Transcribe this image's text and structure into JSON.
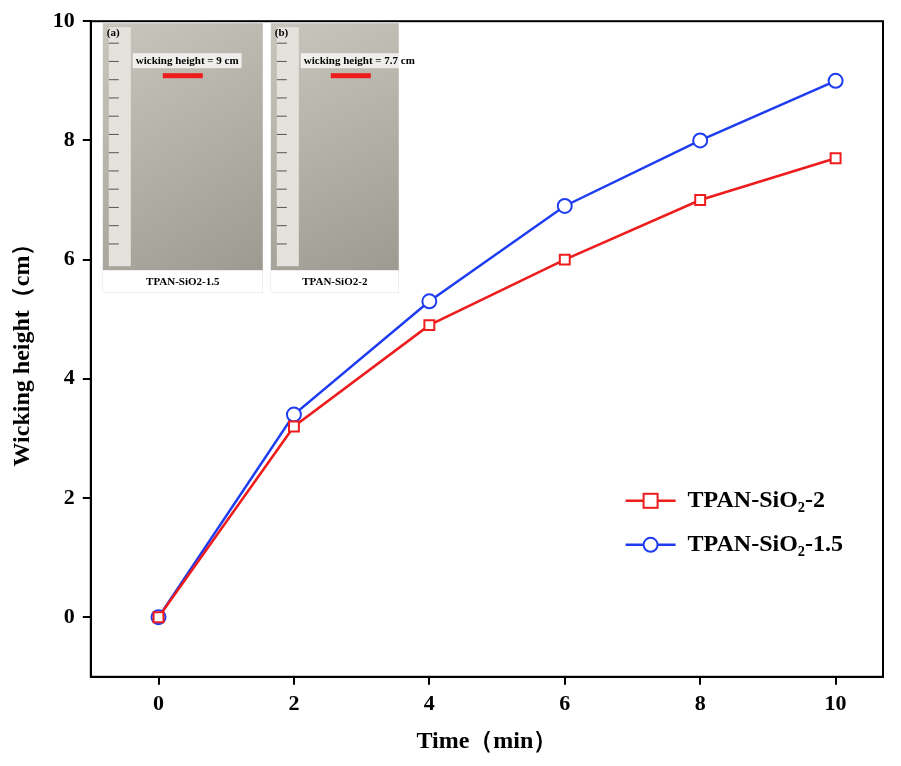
{
  "chart_data": {
    "type": "line",
    "x_label": "Time（min）",
    "y_label": "Wicking height（cm）",
    "x": [
      0,
      2,
      4,
      6,
      8,
      10
    ],
    "series": [
      {
        "name": "TPAN-SiO₂-2",
        "color": "#ee1c1c",
        "marker": "square",
        "values": [
          0,
          3.2,
          4.9,
          6.0,
          7.0,
          7.7
        ]
      },
      {
        "name": "TPAN-SiO₂-1.5",
        "color": "#1e3cf0",
        "marker": "circle",
        "values": [
          0,
          3.4,
          5.3,
          6.9,
          8.0,
          9.0
        ]
      }
    ],
    "xlim": [
      -1,
      10.7
    ],
    "xticks": [
      0,
      2,
      4,
      6,
      8,
      10
    ],
    "ylim": [
      -1,
      10
    ],
    "yticks": [
      0,
      2,
      4,
      6,
      8,
      10
    ],
    "grid": false,
    "legend": "lower right",
    "annotations": [
      {
        "letter": "(a)",
        "text": "wicking height = 9 cm",
        "caption": "TPAN-SiO2-1.5"
      },
      {
        "letter": "(b)",
        "text": "wicking height = 7.7 cm",
        "caption": "TPAN-SiO2-2"
      }
    ]
  }
}
